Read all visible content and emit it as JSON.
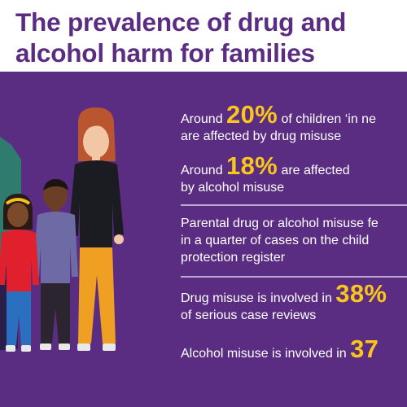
{
  "title": {
    "line1": "The prevalence of drug and",
    "line2": "alcohol harm for families"
  },
  "stats": {
    "s1": {
      "pre": "Around ",
      "value": "20%",
      "post": " of children ‘in ne",
      "line2": "are affected by drug misuse"
    },
    "s2": {
      "pre": "Around ",
      "value": "18%",
      "post": " are affected",
      "line2": "by alcohol misuse"
    },
    "s3": {
      "line1": "Parental drug or alcohol misuse fe",
      "line2": "in a quarter of cases on the child",
      "line3": "protection register"
    },
    "s4": {
      "pre": "Drug misuse is involved in ",
      "value": "38%",
      "line2": "of serious case reviews"
    },
    "s5": {
      "pre": "Alcohol misuse is involved in ",
      "value": "37"
    }
  },
  "colors": {
    "brand_purple": "#5b2d82",
    "highlight_yellow": "#f9c61b",
    "text_white": "#ffffff"
  }
}
